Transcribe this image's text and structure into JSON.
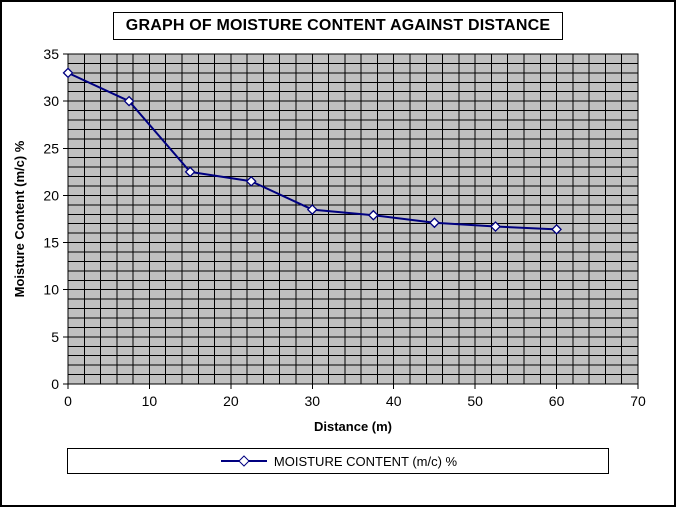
{
  "chart_data": {
    "type": "line",
    "title": "GRAPH OF MOISTURE CONTENT AGAINST DISTANCE",
    "xlabel": "Distance (m)",
    "ylabel": "Moisture Content (m/c) %",
    "xlim": [
      0,
      70
    ],
    "ylim": [
      0,
      35
    ],
    "x_ticks": [
      0,
      10,
      20,
      30,
      40,
      50,
      60,
      70
    ],
    "y_ticks": [
      0,
      5,
      10,
      15,
      20,
      25,
      30,
      35
    ],
    "x_minor": 2,
    "y_minor": 1,
    "grid": "minor-both",
    "plot_bg": "#c0c0c0",
    "grid_color": "#000000",
    "legend_position": "bottom",
    "series": [
      {
        "name": "MOISTURE CONTENT (m/c) %",
        "color": "#000080",
        "marker": "diamond",
        "marker_fill": "#ffffff",
        "x": [
          0,
          7.5,
          15,
          22.5,
          30,
          37.5,
          45,
          52.5,
          60
        ],
        "y": [
          33,
          30,
          22.5,
          21.5,
          18.5,
          17.9,
          17.1,
          16.7,
          16.4
        ]
      }
    ]
  }
}
